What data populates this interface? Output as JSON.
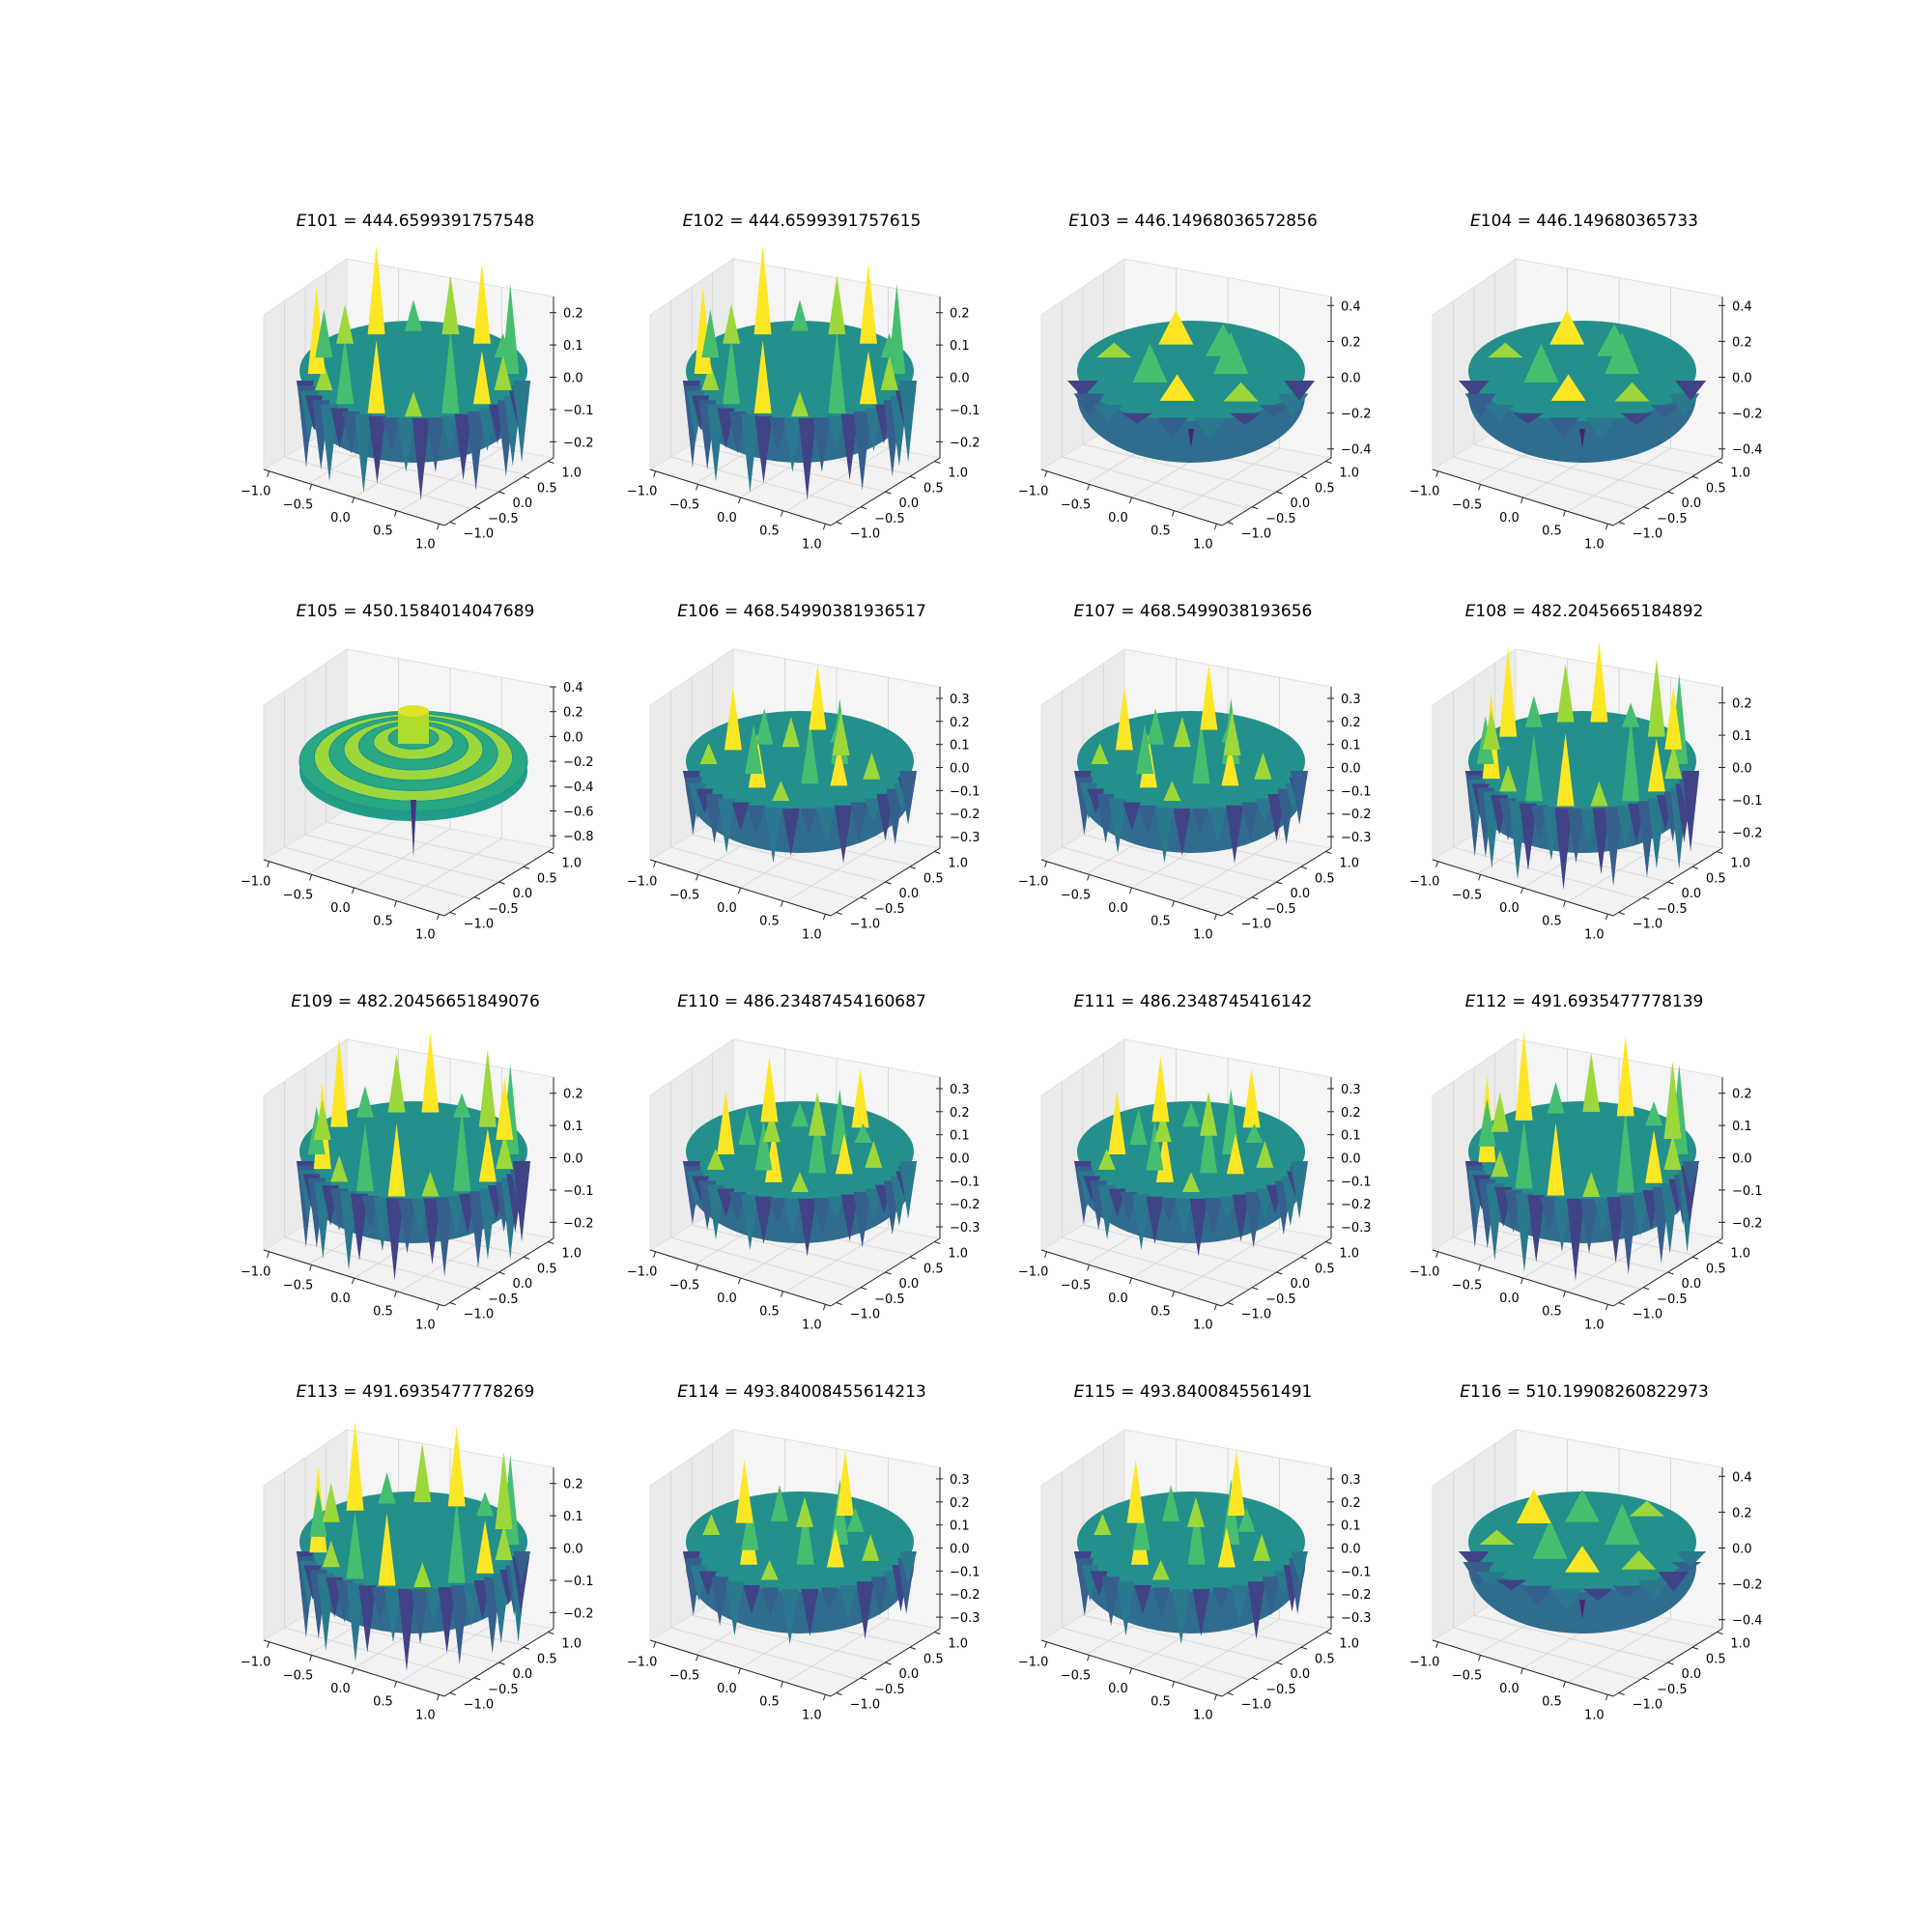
{
  "chart_data": [
    {
      "type": "surface3d",
      "title_var": "E101",
      "title_value": "444.6599391757548",
      "zticks": [
        "0.2",
        "0.1",
        "0.0",
        "−0.1",
        "−0.2"
      ],
      "zlim": [
        -0.25,
        0.25
      ],
      "pattern": "ring",
      "lobes": 12
    },
    {
      "type": "surface3d",
      "title_var": "E102",
      "title_value": "444.6599391757615",
      "zticks": [
        "0.2",
        "0.1",
        "0.0",
        "−0.1",
        "−0.2"
      ],
      "zlim": [
        -0.25,
        0.25
      ],
      "pattern": "ring",
      "lobes": 12
    },
    {
      "type": "surface3d",
      "title_var": "E103",
      "title_value": "446.14968036572856",
      "zticks": [
        "0.4",
        "0.2",
        "0.0",
        "−0.2",
        "−0.4"
      ],
      "zlim": [
        -0.45,
        0.45
      ],
      "pattern": "blob",
      "lobes": 5
    },
    {
      "type": "surface3d",
      "title_var": "E104",
      "title_value": "446.149680365733",
      "zticks": [
        "0.4",
        "0.2",
        "0.0",
        "−0.2",
        "−0.4"
      ],
      "zlim": [
        -0.45,
        0.45
      ],
      "pattern": "blob",
      "lobes": 5
    },
    {
      "type": "surface3d",
      "title_var": "E105",
      "title_value": "450.1584014047689",
      "zticks": [
        "0.4",
        "0.2",
        "0.0",
        "−0.2",
        "−0.4",
        "−0.6",
        "−0.8"
      ],
      "zlim": [
        -0.9,
        0.4
      ],
      "pattern": "radial",
      "lobes": 0
    },
    {
      "type": "surface3d",
      "title_var": "E106",
      "title_value": "468.54990381936517",
      "zticks": [
        "0.3",
        "0.2",
        "0.1",
        "0.0",
        "−0.1",
        "−0.2",
        "−0.3"
      ],
      "zlim": [
        -0.35,
        0.35
      ],
      "pattern": "dense",
      "lobes": 10
    },
    {
      "type": "surface3d",
      "title_var": "E107",
      "title_value": "468.5499038193656",
      "zticks": [
        "0.3",
        "0.2",
        "0.1",
        "0.0",
        "−0.1",
        "−0.2",
        "−0.3"
      ],
      "zlim": [
        -0.35,
        0.35
      ],
      "pattern": "dense",
      "lobes": 10
    },
    {
      "type": "surface3d",
      "title_var": "E108",
      "title_value": "482.2045665184892",
      "zticks": [
        "0.2",
        "0.1",
        "0.0",
        "−0.1",
        "−0.2"
      ],
      "zlim": [
        -0.25,
        0.25
      ],
      "pattern": "ring",
      "lobes": 14
    },
    {
      "type": "surface3d",
      "title_var": "E109",
      "title_value": "482.20456651849076",
      "zticks": [
        "0.2",
        "0.1",
        "0.0",
        "−0.1",
        "−0.2"
      ],
      "zlim": [
        -0.25,
        0.25
      ],
      "pattern": "ring",
      "lobes": 14
    },
    {
      "type": "surface3d",
      "title_var": "E110",
      "title_value": "486.23487454160687",
      "zticks": [
        "0.3",
        "0.2",
        "0.1",
        "0.0",
        "−0.1",
        "−0.2",
        "−0.3"
      ],
      "zlim": [
        -0.35,
        0.35
      ],
      "pattern": "dense",
      "lobes": 12
    },
    {
      "type": "surface3d",
      "title_var": "E111",
      "title_value": "486.2348745416142",
      "zticks": [
        "0.3",
        "0.2",
        "0.1",
        "0.0",
        "−0.1",
        "−0.2",
        "−0.3"
      ],
      "zlim": [
        -0.35,
        0.35
      ],
      "pattern": "dense",
      "lobes": 12
    },
    {
      "type": "surface3d",
      "title_var": "E112",
      "title_value": "491.6935477778139",
      "zticks": [
        "0.2",
        "0.1",
        "0.0",
        "−0.1",
        "−0.2"
      ],
      "zlim": [
        -0.25,
        0.25
      ],
      "pattern": "ring",
      "lobes": 13
    },
    {
      "type": "surface3d",
      "title_var": "E113",
      "title_value": "491.6935477778269",
      "zticks": [
        "0.2",
        "0.1",
        "0.0",
        "−0.1",
        "−0.2"
      ],
      "zlim": [
        -0.25,
        0.25
      ],
      "pattern": "ring",
      "lobes": 13
    },
    {
      "type": "surface3d",
      "title_var": "E114",
      "title_value": "493.84008455614213",
      "zticks": [
        "0.3",
        "0.2",
        "0.1",
        "0.0",
        "−0.1",
        "−0.2",
        "−0.3"
      ],
      "zlim": [
        -0.35,
        0.35
      ],
      "pattern": "dense",
      "lobes": 9
    },
    {
      "type": "surface3d",
      "title_var": "E115",
      "title_value": "493.8400845561491",
      "zticks": [
        "0.3",
        "0.2",
        "0.1",
        "0.0",
        "−0.1",
        "−0.2",
        "−0.3"
      ],
      "zlim": [
        -0.35,
        0.35
      ],
      "pattern": "dense",
      "lobes": 9
    },
    {
      "type": "surface3d",
      "title_var": "E116",
      "title_value": "510.19908260822973",
      "zticks": [
        "0.4",
        "0.2",
        "0.0",
        "−0.2",
        "−0.4"
      ],
      "zlim": [
        -0.45,
        0.45
      ],
      "pattern": "blob",
      "lobes": 6
    }
  ],
  "axes": {
    "xticks": [
      "−1.0",
      "−0.5",
      "0.0",
      "0.5",
      "1.0"
    ],
    "yticks": [
      "1.0",
      "0.5",
      "0.0",
      "−0.5",
      "−1.0"
    ],
    "xlim": [
      -1,
      1
    ],
    "ylim": [
      -1,
      1
    ]
  },
  "layout": {
    "rows": 4,
    "cols": 4,
    "colormap": "viridis"
  }
}
